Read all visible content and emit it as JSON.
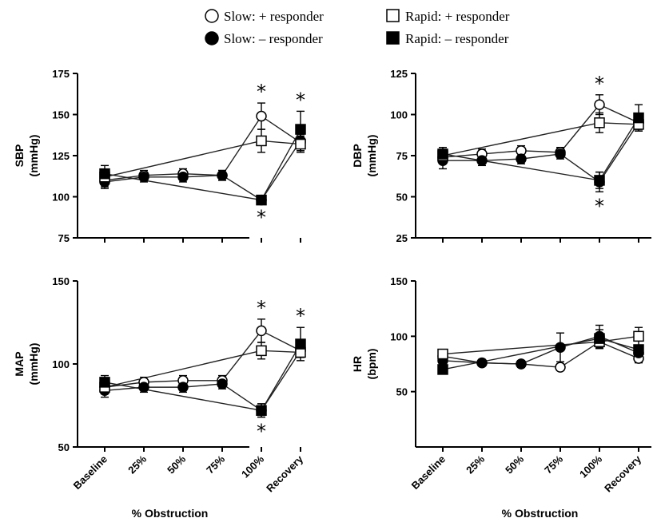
{
  "legend": {
    "items": [
      {
        "label": "Slow: + responder",
        "marker": "circle-open"
      },
      {
        "label": "Slow: – responder",
        "marker": "circle-filled"
      },
      {
        "label": "Rapid: + responder",
        "marker": "square-open"
      },
      {
        "label": "Rapid: – responder",
        "marker": "square-filled"
      }
    ]
  },
  "chart_data": [
    {
      "type": "line",
      "panel": "top-left",
      "ylabel_line1": "SBP",
      "ylabel_line2": "(mmHg)",
      "xlabel": "",
      "ylim": [
        75,
        175
      ],
      "yticks": [
        75,
        100,
        125,
        150,
        175
      ],
      "categories": [
        "Baseline",
        "25%",
        "50%",
        "75%",
        "100%",
        "Recovery"
      ],
      "series": [
        {
          "name": "Slow: + responder",
          "marker": "circle-open",
          "x": [
            "Baseline",
            "25%",
            "50%",
            "75%",
            "100%",
            "Recovery"
          ],
          "values": [
            110,
            113,
            114,
            113,
            149,
            133
          ],
          "errors": [
            4,
            3,
            3,
            3,
            8,
            5
          ]
        },
        {
          "name": "Slow: – responder",
          "marker": "circle-filled",
          "x": [
            "Baseline",
            "25%",
            "50%",
            "75%",
            "100%",
            "Recovery"
          ],
          "values": [
            109,
            112,
            112,
            113,
            98,
            134
          ],
          "errors": [
            4,
            3,
            3,
            3,
            2,
            6
          ]
        },
        {
          "name": "Rapid: + responder",
          "marker": "square-open",
          "x": [
            "Baseline",
            "100%",
            "Recovery"
          ],
          "values": [
            112,
            134,
            132
          ],
          "errors": [
            4,
            7,
            5
          ]
        },
        {
          "name": "Rapid: – responder",
          "marker": "square-filled",
          "x": [
            "Baseline",
            "100%",
            "Recovery"
          ],
          "values": [
            114,
            98,
            141
          ],
          "errors": [
            5,
            2,
            11
          ]
        }
      ],
      "annotations": [
        {
          "text": "*",
          "x": "100%",
          "position": "above"
        },
        {
          "text": "*",
          "x": "100%",
          "position": "below"
        },
        {
          "text": "*",
          "x": "Recovery",
          "position": "above"
        }
      ]
    },
    {
      "type": "line",
      "panel": "top-right",
      "ylabel_line1": "DBP",
      "ylabel_line2": "(mmHg)",
      "xlabel": "",
      "ylim": [
        25,
        125
      ],
      "yticks": [
        25,
        50,
        75,
        100,
        125
      ],
      "categories": [
        "Baseline",
        "25%",
        "50%",
        "75%",
        "100%",
        "Recovery"
      ],
      "series": [
        {
          "name": "Slow: + responder",
          "marker": "circle-open",
          "x": [
            "Baseline",
            "25%",
            "50%",
            "75%",
            "100%",
            "Recovery"
          ],
          "values": [
            74,
            76,
            78,
            77,
            106,
            95
          ],
          "errors": [
            4,
            3,
            3,
            3,
            6,
            4
          ]
        },
        {
          "name": "Slow: – responder",
          "marker": "circle-filled",
          "x": [
            "Baseline",
            "25%",
            "50%",
            "75%",
            "100%",
            "Recovery"
          ],
          "values": [
            72,
            72,
            73,
            76,
            59,
            95
          ],
          "errors": [
            5,
            3,
            3,
            3,
            6,
            4
          ]
        },
        {
          "name": "Rapid: + responder",
          "marker": "square-open",
          "x": [
            "Baseline",
            "100%",
            "Recovery"
          ],
          "values": [
            75,
            95,
            94
          ],
          "errors": [
            5,
            6,
            4
          ]
        },
        {
          "name": "Rapid: – responder",
          "marker": "square-filled",
          "x": [
            "Baseline",
            "100%",
            "Recovery"
          ],
          "values": [
            76,
            60,
            98
          ],
          "errors": [
            4,
            5,
            8
          ]
        }
      ],
      "annotations": [
        {
          "text": "*",
          "x": "100%",
          "position": "above"
        },
        {
          "text": "*",
          "x": "100%",
          "position": "below"
        }
      ]
    },
    {
      "type": "line",
      "panel": "bottom-left",
      "ylabel_line1": "MAP",
      "ylabel_line2": "(mmHg)",
      "xlabel": "% Obstruction",
      "ylim": [
        50,
        150
      ],
      "yticks": [
        50,
        100,
        150
      ],
      "categories": [
        "Baseline",
        "25%",
        "50%",
        "75%",
        "100%",
        "Recovery"
      ],
      "series": [
        {
          "name": "Slow: + responder",
          "marker": "circle-open",
          "x": [
            "Baseline",
            "25%",
            "50%",
            "75%",
            "100%",
            "Recovery"
          ],
          "values": [
            86,
            89,
            90,
            90,
            120,
            108
          ],
          "errors": [
            4,
            3,
            3,
            3,
            7,
            4
          ]
        },
        {
          "name": "Slow: – responder",
          "marker": "circle-filled",
          "x": [
            "Baseline",
            "25%",
            "50%",
            "75%",
            "100%",
            "Recovery"
          ],
          "values": [
            84,
            86,
            86,
            88,
            72,
            108
          ],
          "errors": [
            4,
            3,
            3,
            3,
            4,
            4
          ]
        },
        {
          "name": "Rapid: + responder",
          "marker": "square-open",
          "x": [
            "Baseline",
            "100%",
            "Recovery"
          ],
          "values": [
            86,
            108,
            107
          ],
          "errors": [
            4,
            5,
            3
          ]
        },
        {
          "name": "Rapid: – responder",
          "marker": "square-filled",
          "x": [
            "Baseline",
            "100%",
            "Recovery"
          ],
          "values": [
            89,
            72,
            112
          ],
          "errors": [
            4,
            4,
            10
          ]
        }
      ],
      "annotations": [
        {
          "text": "*",
          "x": "100%",
          "position": "above"
        },
        {
          "text": "*",
          "x": "100%",
          "position": "below"
        },
        {
          "text": "*",
          "x": "Recovery",
          "position": "above"
        }
      ]
    },
    {
      "type": "line",
      "panel": "bottom-right",
      "ylabel_line1": "HR",
      "ylabel_line2": "(bpm)",
      "xlabel": "% Obstruction",
      "ylim": [
        0,
        150
      ],
      "yticks": [
        50,
        100,
        150
      ],
      "categories": [
        "Baseline",
        "25%",
        "50%",
        "75%",
        "100%",
        "Recovery"
      ],
      "series": [
        {
          "name": "Slow: + responder",
          "marker": "circle-open",
          "x": [
            "Baseline",
            "25%",
            "50%",
            "75%",
            "100%",
            "Recovery"
          ],
          "values": [
            82,
            76,
            75,
            72,
            95,
            80
          ],
          "errors": [
            3,
            3,
            3,
            3,
            6,
            4
          ]
        },
        {
          "name": "Slow: – responder",
          "marker": "circle-filled",
          "x": [
            "Baseline",
            "25%",
            "50%",
            "75%",
            "100%",
            "Recovery"
          ],
          "values": [
            78,
            76,
            75,
            90,
            100,
            85
          ],
          "errors": [
            4,
            3,
            3,
            13,
            10,
            4
          ]
        },
        {
          "name": "Rapid: + responder",
          "marker": "square-open",
          "x": [
            "Baseline",
            "100%",
            "Recovery"
          ],
          "values": [
            84,
            95,
            100
          ],
          "errors": [
            3,
            6,
            8
          ]
        },
        {
          "name": "Rapid: – responder",
          "marker": "square-filled",
          "x": [
            "Baseline",
            "100%",
            "Recovery"
          ],
          "values": [
            70,
            98,
            88
          ],
          "errors": [
            3,
            8,
            4
          ]
        }
      ],
      "annotations": []
    }
  ]
}
